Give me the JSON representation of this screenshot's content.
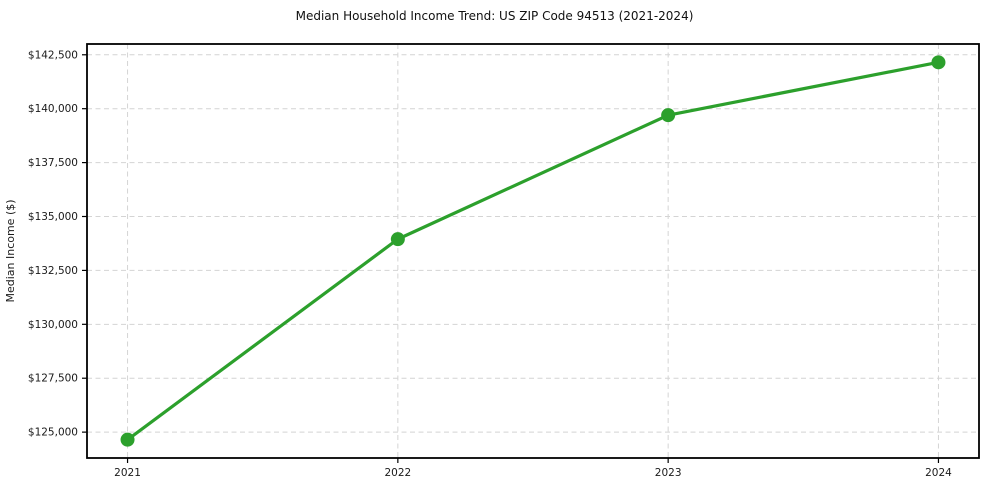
{
  "page": {
    "background": "#ffffff"
  },
  "chart_data": {
    "type": "line",
    "title": "Median Household Income Trend: US ZIP Code 94513 (2021-2024)",
    "xlabel": "",
    "ylabel": "Median Income ($)",
    "x": [
      2021,
      2022,
      2023,
      2024
    ],
    "xtick_labels": [
      "2021",
      "2022",
      "2023",
      "2024"
    ],
    "series": [
      {
        "name": "Median household income",
        "values": [
          124650,
          133950,
          139700,
          142150
        ]
      }
    ],
    "yticks": [
      125000,
      127500,
      130000,
      132500,
      135000,
      137500,
      140000,
      142500
    ],
    "ytick_labels": [
      "$125,000",
      "$127,500",
      "$130,000",
      "$132,500",
      "$135,000",
      "$137,500",
      "$140,000",
      "$142,500"
    ],
    "xlim": [
      2020.85,
      2024.15
    ],
    "ylim": [
      123800,
      143000
    ],
    "grid": true,
    "grid_style": "dashed",
    "legend_position": "none",
    "colors": {
      "line": "#2ca02c",
      "marker": "#2ca02c",
      "grid": "#d4d4d4",
      "axis": "#000000",
      "text": "#1a1a1a"
    }
  }
}
